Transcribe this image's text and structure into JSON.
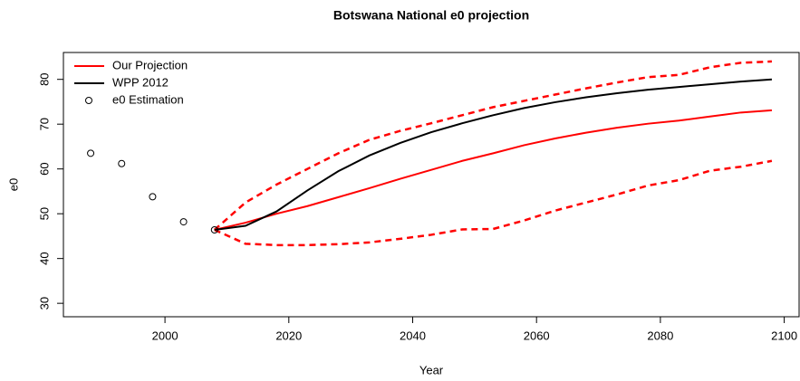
{
  "chart_data": {
    "type": "line",
    "title": "Botswana   National e0 projection",
    "x_label": "Year",
    "y_label": "e0",
    "xlim": [
      1983.6,
      2102.4
    ],
    "ylim": [
      27,
      86
    ],
    "xticks": [
      2000,
      2020,
      2040,
      2060,
      2080,
      2100
    ],
    "yticks": [
      30,
      40,
      50,
      60,
      70,
      80
    ],
    "legend": "top-left",
    "series": [
      {
        "name": "Our Projection",
        "color": "#ff0000",
        "x": [
          2008,
          2013,
          2018,
          2023,
          2028,
          2033,
          2038,
          2043,
          2048,
          2053,
          2058,
          2063,
          2068,
          2073,
          2078,
          2083,
          2088,
          2093,
          2098
        ],
        "values": [
          46.4,
          48,
          50,
          51.7,
          53.7,
          55.7,
          57.8,
          59.8,
          61.8,
          63.5,
          65.3,
          66.8,
          68.1,
          69.2,
          70.1,
          70.8,
          71.7,
          72.6,
          73.1
        ],
        "upper": [
          46.4,
          52.5,
          56.5,
          60,
          63.5,
          66.5,
          68.5,
          70.2,
          72,
          73.8,
          75.2,
          76.6,
          78,
          79.3,
          80.5,
          81,
          82.7,
          83.7,
          84
        ],
        "lower": [
          46.4,
          43.3,
          43,
          43,
          43.2,
          43.6,
          44.4,
          45.3,
          46.5,
          46.6,
          48.5,
          50.7,
          52.5,
          54.3,
          56.3,
          57.5,
          59.6,
          60.5,
          61.8
        ]
      },
      {
        "name": "WPP 2012",
        "color": "#000000",
        "x": [
          2008,
          2013,
          2018,
          2023,
          2028,
          2033,
          2038,
          2043,
          2048,
          2053,
          2058,
          2063,
          2068,
          2073,
          2078,
          2083,
          2088,
          2093,
          2098
        ],
        "values": [
          46.4,
          47.3,
          50.5,
          55.2,
          59.5,
          63,
          65.8,
          68.2,
          70.2,
          72,
          73.6,
          74.9,
          76,
          76.9,
          77.7,
          78.3,
          78.9,
          79.5,
          80
        ]
      },
      {
        "name": "e0 Estimation",
        "color": "#000000",
        "marker": "circle",
        "x": [
          1988,
          1993,
          1998,
          2003,
          2008
        ],
        "values": [
          63.5,
          61.2,
          53.8,
          48.2,
          46.4
        ]
      }
    ]
  }
}
